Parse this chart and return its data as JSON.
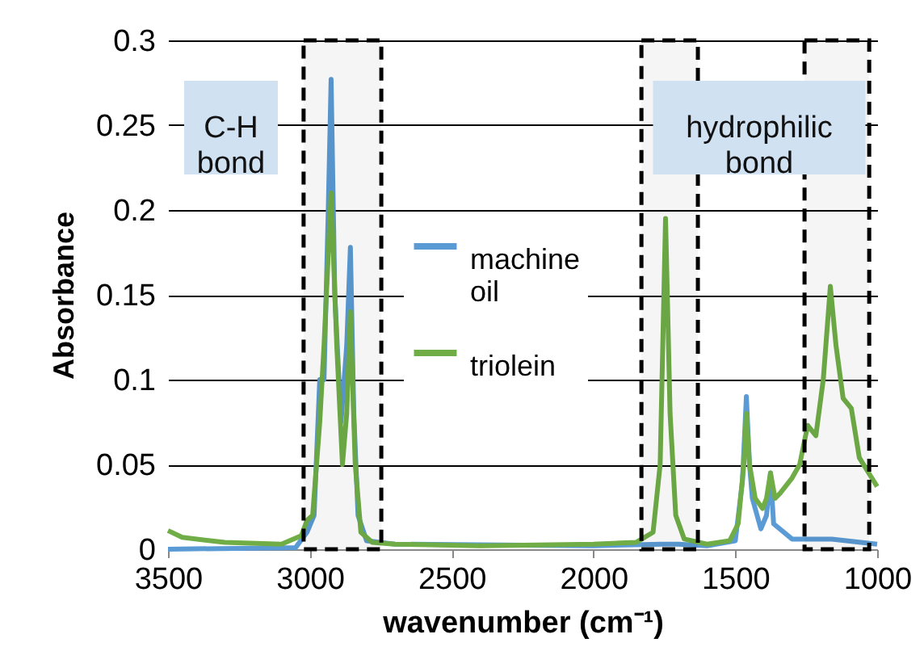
{
  "chart_data": {
    "type": "line",
    "xlabel": "wavenumber (cm⁻¹)",
    "ylabel": "Absorbance",
    "xlim": [
      3500,
      1000
    ],
    "xticks": [
      3500,
      3000,
      2500,
      2000,
      1500,
      1000
    ],
    "ylim": [
      0,
      0.3
    ],
    "yticks": [
      0,
      0.05,
      0.1,
      0.15,
      0.2,
      0.25,
      0.3
    ],
    "grid": "y",
    "legend": "left",
    "line_style": "solid",
    "marker": "none",
    "series": [
      {
        "name": "machine oil",
        "color": "#5b9bd5",
        "x": [
          3500,
          3050,
          3010,
          2985,
          2965,
          2950,
          2935,
          2925,
          2912,
          2890,
          2870,
          2857,
          2845,
          2830,
          2800,
          2700,
          2000,
          1760,
          1700,
          1600,
          1500,
          1475,
          1461,
          1450,
          1440,
          1410,
          1390,
          1376,
          1365,
          1300,
          1160,
          1000
        ],
        "values": [
          0.0,
          0.001,
          0.01,
          0.02,
          0.1,
          0.1,
          0.2,
          0.277,
          0.15,
          0.075,
          0.12,
          0.178,
          0.08,
          0.02,
          0.005,
          0.003,
          0.002,
          0.003,
          0.003,
          0.002,
          0.005,
          0.04,
          0.09,
          0.05,
          0.03,
          0.012,
          0.02,
          0.045,
          0.015,
          0.006,
          0.006,
          0.003
        ]
      },
      {
        "name": "triolein",
        "color": "#70ad47",
        "x": [
          3500,
          3450,
          3300,
          3100,
          3030,
          3010,
          2990,
          2965,
          2950,
          2925,
          2905,
          2885,
          2870,
          2857,
          2840,
          2820,
          2780,
          2700,
          2400,
          2000,
          1850,
          1790,
          1765,
          1746,
          1730,
          1710,
          1680,
          1600,
          1520,
          1490,
          1470,
          1461,
          1450,
          1430,
          1404,
          1390,
          1376,
          1360,
          1342,
          1300,
          1273,
          1245,
          1216,
          1190,
          1165,
          1145,
          1120,
          1091,
          1063,
          1030,
          1000
        ],
        "values": [
          0.011,
          0.007,
          0.004,
          0.003,
          0.008,
          0.017,
          0.02,
          0.075,
          0.12,
          0.21,
          0.12,
          0.05,
          0.08,
          0.14,
          0.05,
          0.01,
          0.004,
          0.003,
          0.002,
          0.003,
          0.004,
          0.01,
          0.05,
          0.195,
          0.08,
          0.02,
          0.006,
          0.003,
          0.005,
          0.015,
          0.05,
          0.08,
          0.05,
          0.03,
          0.024,
          0.03,
          0.045,
          0.03,
          0.033,
          0.042,
          0.05,
          0.073,
          0.067,
          0.1,
          0.155,
          0.12,
          0.089,
          0.083,
          0.054,
          0.045,
          0.037
        ]
      }
    ],
    "bands": [
      {
        "axis": "x",
        "from": 3022,
        "to": 2748,
        "color": "#000000"
      },
      {
        "axis": "x",
        "from": 1831,
        "to": 1632,
        "color": "#000000"
      },
      {
        "axis": "x",
        "from": 1256,
        "to": 1028,
        "color": "#000000"
      }
    ],
    "annotations": [
      "C-H\nbond",
      "hydrophilic\nbond"
    ]
  }
}
